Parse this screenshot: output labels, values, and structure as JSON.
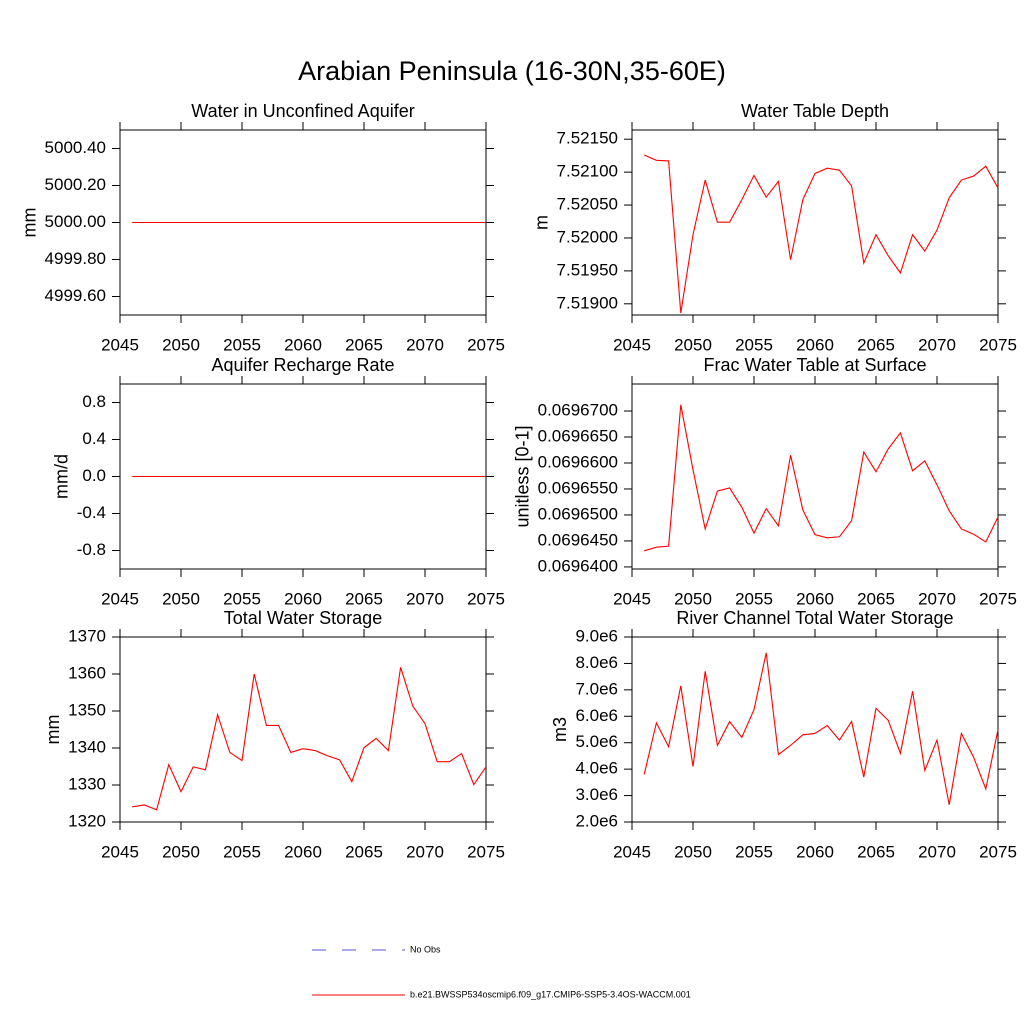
{
  "title": "Arabian Peninsula (16-30N,35-60E)",
  "legend": [
    {
      "name": "No Obs",
      "color": "#5555cc",
      "style": "dashed"
    },
    {
      "name": "b.e21.BWSSP534oscmip6.f09_g17.CMIP6-SSP5-3.4OS-WACCM.001",
      "color": "#ff0000",
      "style": "solid"
    }
  ],
  "chart_data": [
    {
      "type": "line",
      "title": "Water in Unconfined Aquifer",
      "ylabel": "mm",
      "color": "#ff0000",
      "x": [
        2046,
        2047,
        2048,
        2049,
        2050,
        2051,
        2052,
        2053,
        2054,
        2055,
        2056,
        2057,
        2058,
        2059,
        2060,
        2061,
        2062,
        2063,
        2064,
        2065,
        2066,
        2067,
        2068,
        2069,
        2070,
        2071,
        2072,
        2073,
        2074,
        2075
      ],
      "values": [
        5000,
        5000,
        5000,
        5000,
        5000,
        5000,
        5000,
        5000,
        5000,
        5000,
        5000,
        5000,
        5000,
        5000,
        5000,
        5000,
        5000,
        5000,
        5000,
        5000,
        5000,
        5000,
        5000,
        5000,
        5000,
        5000,
        5000,
        5000,
        5000,
        5000
      ],
      "xlim": [
        2045,
        2075
      ],
      "xticks": [
        2045,
        2050,
        2055,
        2060,
        2065,
        2070,
        2075
      ],
      "ylim": [
        4999.5,
        5000.5
      ],
      "yticks": [
        {
          "value": 4999.6,
          "label": "4999.60"
        },
        {
          "value": 4999.8,
          "label": "4999.80"
        },
        {
          "value": 5000,
          "label": "5000.00"
        },
        {
          "value": 5000.2,
          "label": "5000.20"
        },
        {
          "value": 5000.4,
          "label": "5000.40"
        }
      ]
    },
    {
      "type": "line",
      "title": "Water Table Depth",
      "ylabel": "m",
      "color": "#ff0000",
      "x": [
        2046,
        2047,
        2048,
        2049,
        2050,
        2051,
        2052,
        2053,
        2054,
        2055,
        2056,
        2057,
        2058,
        2059,
        2060,
        2061,
        2062,
        2063,
        2064,
        2065,
        2066,
        2067,
        2068,
        2069,
        2070,
        2071,
        2072,
        2073,
        2074,
        2075
      ],
      "values": [
        7.52126,
        7.52118,
        7.52117,
        7.51886,
        7.52005,
        7.52088,
        7.52024,
        7.52024,
        7.52058,
        7.52095,
        7.52062,
        7.52086,
        7.51967,
        7.52058,
        7.52098,
        7.52106,
        7.52103,
        7.52079,
        7.51962,
        7.52005,
        7.51973,
        7.51947,
        7.52005,
        7.5198,
        7.52012,
        7.52061,
        7.52088,
        7.52094,
        7.52109,
        7.52076
      ],
      "xlim": [
        2045,
        2075
      ],
      "xticks": [
        2045,
        2050,
        2055,
        2060,
        2065,
        2070,
        2075
      ],
      "ylim": [
        7.51883,
        7.52164
      ],
      "yticks": [
        {
          "value": 7.519,
          "label": "7.51900"
        },
        {
          "value": 7.5195,
          "label": "7.51950"
        },
        {
          "value": 7.52,
          "label": "7.52000"
        },
        {
          "value": 7.5205,
          "label": "7.52050"
        },
        {
          "value": 7.521,
          "label": "7.52100"
        },
        {
          "value": 7.5215,
          "label": "7.52150"
        }
      ]
    },
    {
      "type": "line",
      "title": "Aquifer Recharge Rate",
      "ylabel": "mm/d",
      "color": "#ff0000",
      "x": [
        2046,
        2047,
        2048,
        2049,
        2050,
        2051,
        2052,
        2053,
        2054,
        2055,
        2056,
        2057,
        2058,
        2059,
        2060,
        2061,
        2062,
        2063,
        2064,
        2065,
        2066,
        2067,
        2068,
        2069,
        2070,
        2071,
        2072,
        2073,
        2074,
        2075
      ],
      "values": [
        0,
        0,
        0,
        0,
        0,
        0,
        0,
        0,
        0,
        0,
        0,
        0,
        0,
        0,
        0,
        0,
        0,
        0,
        0,
        0,
        0,
        0,
        0,
        0,
        0,
        0,
        0,
        0,
        0,
        0
      ],
      "xlim": [
        2045,
        2075
      ],
      "xticks": [
        2045,
        2050,
        2055,
        2060,
        2065,
        2070,
        2075
      ],
      "ylim": [
        -1,
        1
      ],
      "yticks": [
        -0.8,
        -0.4,
        {
          "value": 0,
          "label": "0.0"
        },
        0.4,
        0.8
      ]
    },
    {
      "type": "line",
      "title": "Frac Water Table at Surface",
      "ylabel": "unitless [0-1]",
      "color": "#ff0000",
      "x": [
        2046,
        2047,
        2048,
        2049,
        2050,
        2051,
        2052,
        2053,
        2054,
        2055,
        2056,
        2057,
        2058,
        2059,
        2060,
        2061,
        2062,
        2063,
        2064,
        2065,
        2066,
        2067,
        2068,
        2069,
        2070,
        2071,
        2072,
        2073,
        2074,
        2075
      ],
      "values": [
        0.0696431,
        0.0696438,
        0.069644,
        0.0696712,
        0.0696587,
        0.0696473,
        0.0696546,
        0.0696552,
        0.0696515,
        0.0696465,
        0.0696512,
        0.0696479,
        0.0696615,
        0.069651,
        0.0696462,
        0.0696456,
        0.0696458,
        0.0696489,
        0.0696621,
        0.0696583,
        0.0696627,
        0.0696658,
        0.0696585,
        0.0696604,
        0.0696558,
        0.0696508,
        0.0696473,
        0.0696463,
        0.0696448,
        0.0696496
      ],
      "xlim": [
        2045,
        2075
      ],
      "xticks": [
        2045,
        2050,
        2055,
        2060,
        2065,
        2070,
        2075
      ],
      "ylim": [
        0.0696396,
        0.0696752
      ],
      "yticks": [
        {
          "value": 0.06964,
          "label": "0.0696400"
        },
        {
          "value": 0.069645,
          "label": "0.0696450"
        },
        {
          "value": 0.06965,
          "label": "0.0696500"
        },
        {
          "value": 0.069655,
          "label": "0.0696550"
        },
        {
          "value": 0.06966,
          "label": "0.0696600"
        },
        {
          "value": 0.069665,
          "label": "0.0696650"
        },
        {
          "value": 0.06967,
          "label": "0.0696700"
        }
      ]
    },
    {
      "type": "line",
      "title": "Total Water Storage",
      "ylabel": "mm",
      "color": "#ff0000",
      "x": [
        2046,
        2047,
        2048,
        2049,
        2050,
        2051,
        2052,
        2053,
        2054,
        2055,
        2056,
        2057,
        2058,
        2059,
        2060,
        2061,
        2062,
        2063,
        2064,
        2065,
        2066,
        2067,
        2068,
        2069,
        2070,
        2071,
        2072,
        2073,
        2074,
        2075
      ],
      "values": [
        1324.1,
        1324.6,
        1323.3,
        1335.5,
        1328.2,
        1334.9,
        1334.1,
        1349,
        1338.8,
        1336.6,
        1360,
        1346.1,
        1346.1,
        1338.8,
        1339.8,
        1339.3,
        1337.9,
        1336.8,
        1330.9,
        1340.1,
        1342.6,
        1339.3,
        1361.8,
        1351.3,
        1346.6,
        1336.3,
        1336.3,
        1338.5,
        1330.1,
        1334.9
      ],
      "xlim": [
        2045,
        2075
      ],
      "xticks": [
        2045,
        2050,
        2055,
        2060,
        2065,
        2070,
        2075
      ],
      "ylim": [
        1320,
        1370
      ],
      "yticks": [
        1320,
        1330,
        1340,
        1350,
        1360,
        1370
      ]
    },
    {
      "type": "line",
      "title": "River Channel Total Water Storage",
      "ylabel": "m3",
      "color": "#ff0000",
      "x": [
        2046,
        2047,
        2048,
        2049,
        2050,
        2051,
        2052,
        2053,
        2054,
        2055,
        2056,
        2057,
        2058,
        2059,
        2060,
        2061,
        2062,
        2063,
        2064,
        2065,
        2066,
        2067,
        2068,
        2069,
        2070,
        2071,
        2072,
        2073,
        2074,
        2075
      ],
      "values": [
        3800000,
        5750000,
        4850000,
        7150000,
        4100000,
        7700000,
        4900000,
        5800000,
        5200000,
        6250000,
        8400000,
        4550000,
        4900000,
        5300000,
        5350000,
        5650000,
        5100000,
        5800000,
        3700000,
        6300000,
        5850000,
        4600000,
        6950000,
        3950000,
        5100000,
        2650000,
        5350000,
        4450000,
        3250000,
        5500000
      ],
      "xlim": [
        2045,
        2075
      ],
      "xticks": [
        2045,
        2050,
        2055,
        2060,
        2065,
        2070,
        2075
      ],
      "ylim": [
        2000000,
        9000000
      ],
      "yticks": [
        {
          "value": 2000000,
          "label": "2.0e6"
        },
        {
          "value": 3000000,
          "label": "3.0e6"
        },
        {
          "value": 4000000,
          "label": "4.0e6"
        },
        {
          "value": 5000000,
          "label": "5.0e6"
        },
        {
          "value": 6000000,
          "label": "6.0e6"
        },
        {
          "value": 7000000,
          "label": "7.0e6"
        },
        {
          "value": 8000000,
          "label": "8.0e6"
        },
        {
          "value": 9000000,
          "label": "9.0e6"
        }
      ]
    }
  ]
}
